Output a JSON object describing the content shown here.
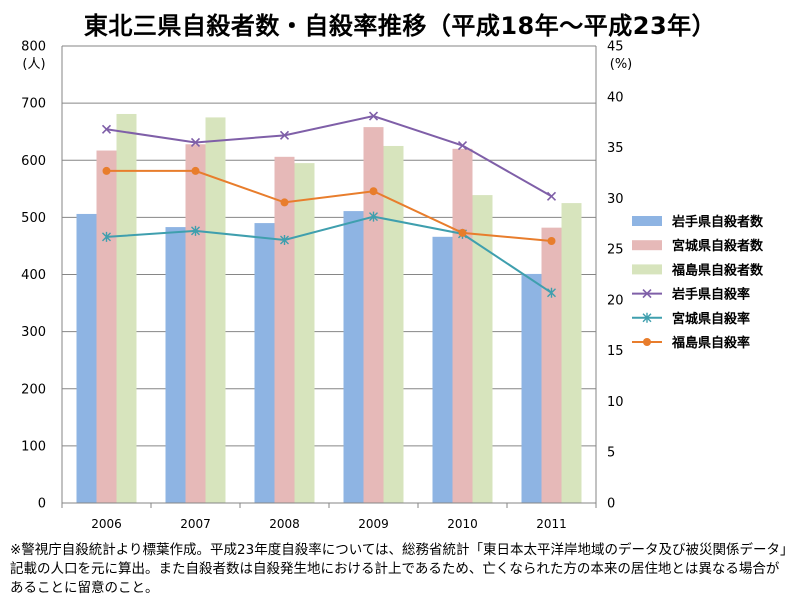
{
  "page_title": "東北三県自殺者数・自殺率推移（平成18年～平成23年）",
  "footnote": "※警視庁自殺統計より標葉作成。平成23年度自殺率については、総務省統計「東日本太平洋岸地域のデータ及び被災関係データ」記載の人口を元に算出。また自殺者数は自殺発生地における計上であるため、亡くなられた方の本来の居住地とは異なる場合があることに留意のこと。",
  "chart_data": {
    "type": "bar",
    "title": "東北三県自殺者数・自殺率推移（平成18年～平成23年）",
    "categories": [
      "2006",
      "2007",
      "2008",
      "2009",
      "2010",
      "2011"
    ],
    "left_axis": {
      "unit_label": "(人)",
      "ylim": [
        0,
        800
      ],
      "ticks": [
        "0",
        "100",
        "200",
        "300",
        "400",
        "500",
        "600",
        "700",
        "800"
      ]
    },
    "right_axis": {
      "unit_label": "(%)",
      "ylim": [
        0,
        45
      ],
      "ticks": [
        "0",
        "5",
        "10",
        "15",
        "20",
        "25",
        "30",
        "35",
        "40",
        "45"
      ]
    },
    "grid": true,
    "legend_position": "right",
    "bar_series": [
      {
        "name": "岩手県自殺者数",
        "color": "#8eb4e3",
        "values": [
          506,
          483,
          490,
          511,
          466,
          401
        ]
      },
      {
        "name": "宮城県自殺者数",
        "color": "#e6b9b8",
        "values": [
          617,
          628,
          606,
          658,
          620,
          482
        ]
      },
      {
        "name": "福島県自殺者数",
        "color": "#d7e4bd",
        "values": [
          681,
          675,
          595,
          625,
          539,
          525
        ]
      }
    ],
    "line_series": [
      {
        "name": "岩手県自殺率",
        "axis": "right",
        "color": "#7f5fa8",
        "marker": "x",
        "values": [
          36.8,
          35.5,
          36.2,
          38.1,
          35.2,
          30.2
        ]
      },
      {
        "name": "宮城県自殺率",
        "axis": "right",
        "color": "#3f9fae",
        "marker": "star",
        "values": [
          26.2,
          26.8,
          25.9,
          28.2,
          26.5,
          20.7
        ]
      },
      {
        "name": "福島県自殺率",
        "axis": "right",
        "color": "#e87d2c",
        "marker": "circle",
        "values": [
          32.7,
          32.7,
          29.6,
          30.7,
          26.6,
          25.8
        ]
      }
    ]
  }
}
